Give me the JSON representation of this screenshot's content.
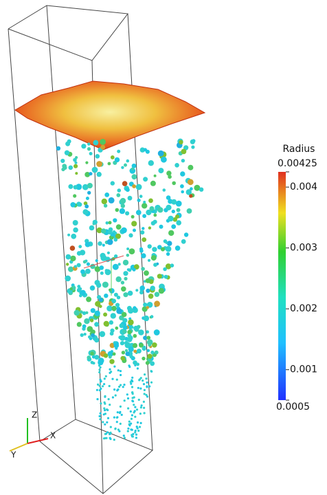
{
  "colorbar": {
    "title": "Radius",
    "range": [
      0.0005,
      0.00425
    ],
    "ticks": [
      0.0005,
      0.001,
      0.002,
      0.003,
      0.004,
      0.00425
    ]
  },
  "axes_glyph": {
    "x": "X",
    "y": "Y",
    "z": "Z"
  }
}
